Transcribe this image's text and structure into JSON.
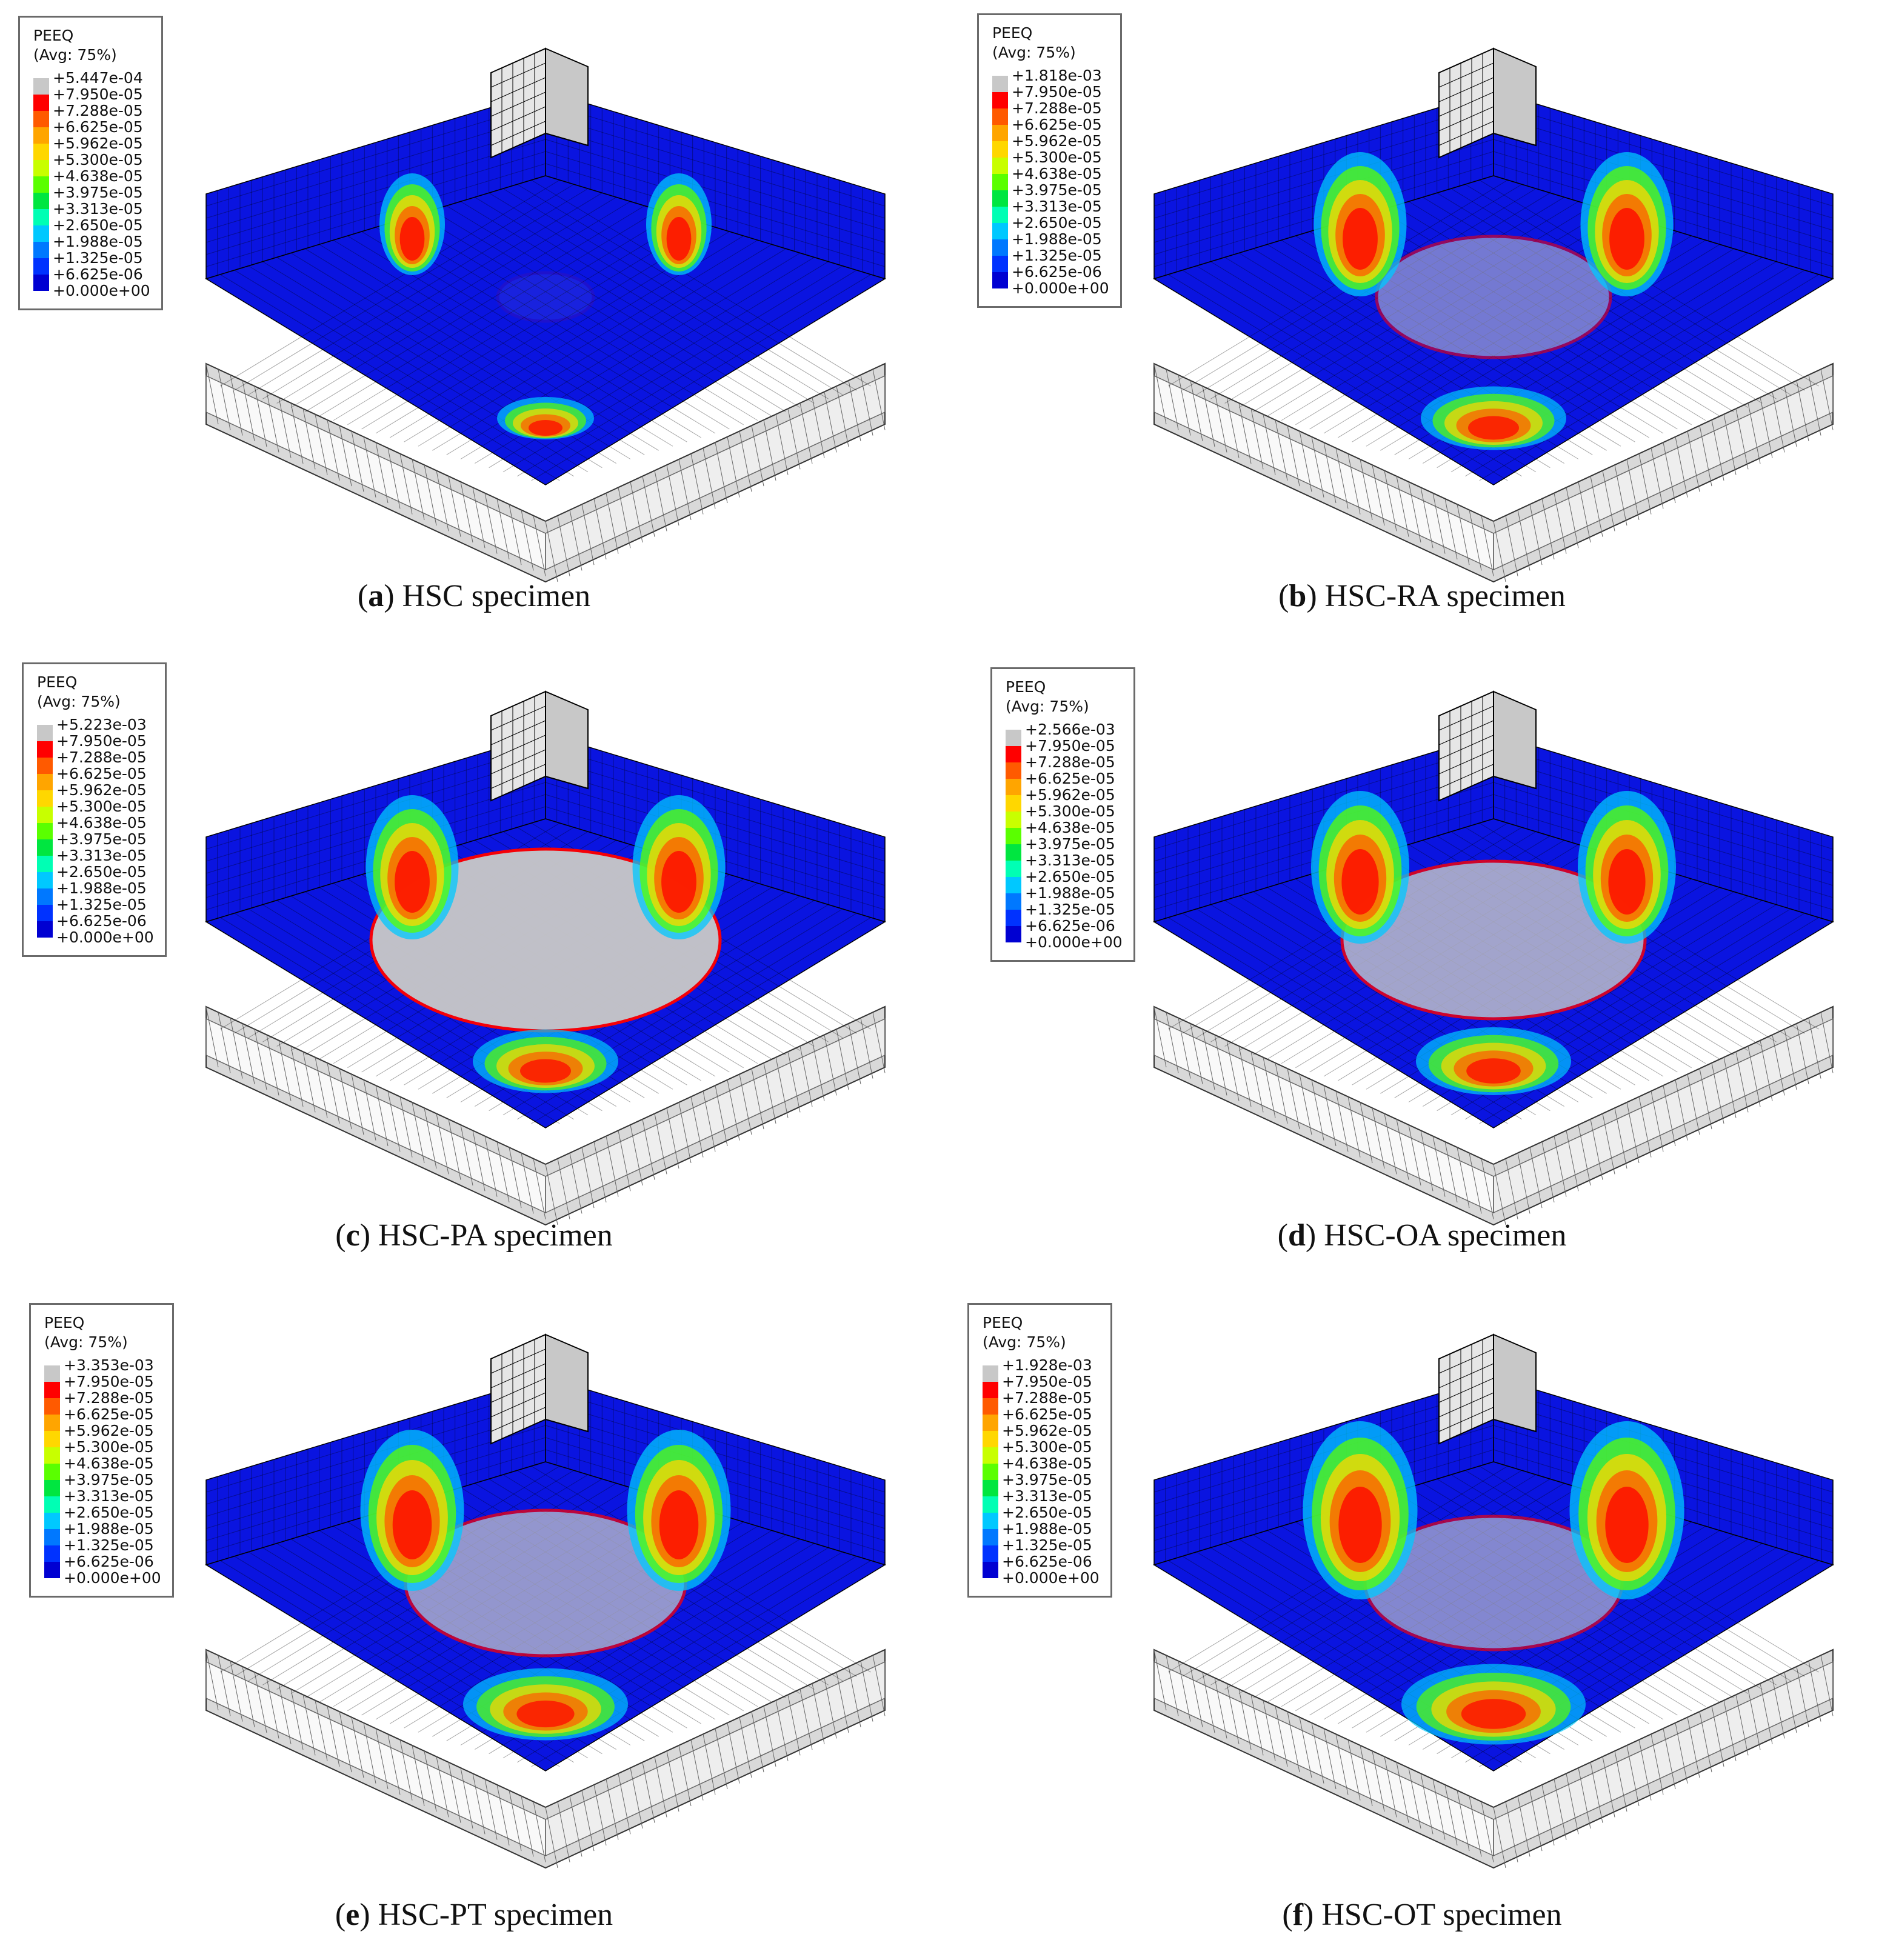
{
  "legend_common": {
    "variable": "PEEQ",
    "averaging": "(Avg: 75%)",
    "values": [
      "+7.950e-05",
      "+7.288e-05",
      "+6.625e-05",
      "+5.962e-05",
      "+5.300e-05",
      "+4.638e-05",
      "+3.975e-05",
      "+3.313e-05",
      "+2.650e-05",
      "+1.988e-05",
      "+1.325e-05",
      "+6.625e-06",
      "+0.000e+00"
    ],
    "colors": [
      "#c8c8c8",
      "#ff0000",
      "#ff5a00",
      "#ffa500",
      "#ffd700",
      "#c8ff00",
      "#5aff00",
      "#00e640",
      "#00ffb4",
      "#00c8ff",
      "#0078ff",
      "#0032ff",
      "#0000d2"
    ]
  },
  "panels": [
    {
      "label": "a",
      "caption": "HSC specimen",
      "max_value": "+5.447e-04"
    },
    {
      "label": "b",
      "caption": "HSC-RA specimen",
      "max_value": "+1.818e-03"
    },
    {
      "label": "c",
      "caption": "HSC-PA specimen",
      "max_value": "+5.223e-03"
    },
    {
      "label": "d",
      "caption": "HSC-OA specimen",
      "max_value": "+2.566e-03"
    },
    {
      "label": "e",
      "caption": "HSC-PT specimen",
      "max_value": "+3.353e-03"
    },
    {
      "label": "f",
      "caption": "HSC-OT specimen",
      "max_value": "+1.928e-03"
    }
  ]
}
